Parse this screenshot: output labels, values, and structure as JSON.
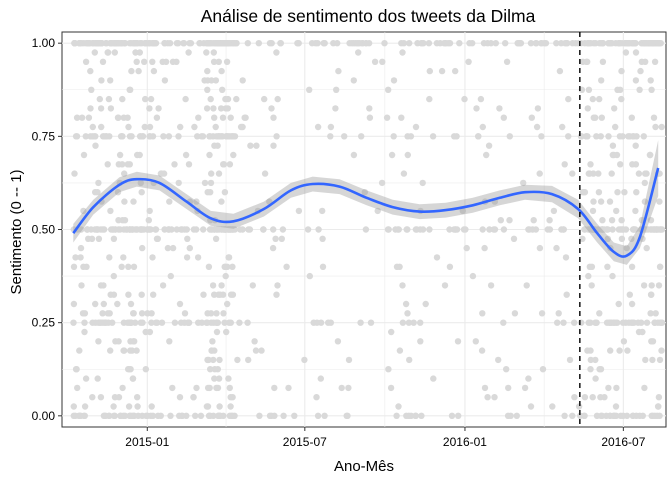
{
  "chart_data": {
    "type": "scatter",
    "title": "Análise de sentimento dos tweets da Dilma",
    "xlabel": "Ano-Mês",
    "ylabel": "Sentimento (0 -- 1)",
    "x_range": [
      "2014-09-25",
      "2016-08-19"
    ],
    "ylim": [
      -0.03,
      1.03
    ],
    "x_ticks": [
      {
        "date": "2015-01-01",
        "label": "2015-01"
      },
      {
        "date": "2015-07-01",
        "label": "2015-07"
      },
      {
        "date": "2016-01-01",
        "label": "2016-01"
      },
      {
        "date": "2016-07-01",
        "label": "2016-07"
      }
    ],
    "y_ticks": [
      {
        "value": 0,
        "label": "0.00"
      },
      {
        "value": 0.25,
        "label": "0.25"
      },
      {
        "value": 0.5,
        "label": "0.50"
      },
      {
        "value": 0.75,
        "label": "0.75"
      },
      {
        "value": 1,
        "label": "1.00"
      }
    ],
    "grid": true,
    "vline": {
      "date": "2016-05-12",
      "style": "dashed"
    },
    "smooth": {
      "x": [
        "2014-10-08",
        "2014-10-31",
        "2014-11-30",
        "2014-12-20",
        "2015-01-15",
        "2015-02-15",
        "2015-03-15",
        "2015-04-10",
        "2015-05-15",
        "2015-06-15",
        "2015-07-10",
        "2015-08-10",
        "2015-09-10",
        "2015-10-10",
        "2015-11-10",
        "2015-12-10",
        "2016-01-10",
        "2016-02-10",
        "2016-03-10",
        "2016-04-10",
        "2016-05-10",
        "2016-06-01",
        "2016-06-20",
        "2016-07-05",
        "2016-07-20",
        "2016-08-10"
      ],
      "y": [
        0.49,
        0.56,
        0.62,
        0.635,
        0.625,
        0.575,
        0.53,
        0.522,
        0.555,
        0.605,
        0.622,
        0.615,
        0.585,
        0.56,
        0.548,
        0.552,
        0.565,
        0.585,
        0.6,
        0.595,
        0.555,
        0.49,
        0.44,
        0.43,
        0.48,
        0.665
      ],
      "ci_halfwidth": [
        0.025,
        0.02,
        0.02,
        0.02,
        0.02,
        0.02,
        0.02,
        0.02,
        0.02,
        0.02,
        0.02,
        0.02,
        0.02,
        0.02,
        0.02,
        0.02,
        0.02,
        0.02,
        0.02,
        0.022,
        0.025,
        0.025,
        0.025,
        0.025,
        0.03,
        0.075
      ]
    },
    "points": {
      "note_groups": [
        {
          "start": "2014-10-08",
          "end": "2015-01-15",
          "n": 360
        },
        {
          "start": "2015-01-15",
          "end": "2015-03-10",
          "n": 90
        },
        {
          "start": "2015-03-10",
          "end": "2015-04-10",
          "n": 200
        },
        {
          "start": "2015-04-10",
          "end": "2016-05-12",
          "n": 330
        },
        {
          "start": "2016-05-12",
          "end": "2016-08-15",
          "n": 320
        }
      ],
      "values_y": [
        0,
        0.25,
        0.5,
        0.75,
        1
      ],
      "color": "#d9d9d9"
    },
    "colors": {
      "smooth_line": "#3366ff",
      "ribbon": "#999999",
      "points": "#d9d9d9",
      "vline": "#000000",
      "grid": "#ebebeb"
    }
  }
}
